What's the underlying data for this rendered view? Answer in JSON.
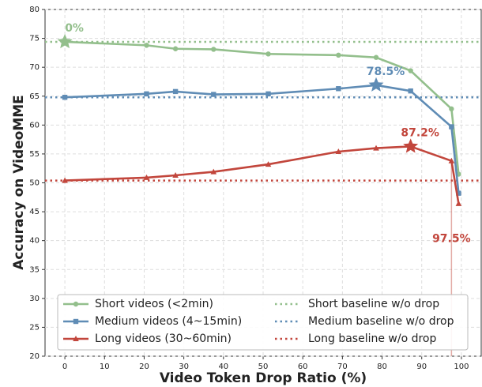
{
  "chart_data": {
    "type": "line",
    "x_label": "Video Token Drop Ratio (%)",
    "y_label": "Accuracy on VideoMME",
    "xlim": [
      -5,
      105
    ],
    "ylim": [
      20,
      80
    ],
    "xticks": [
      0,
      10,
      20,
      30,
      40,
      50,
      60,
      70,
      80,
      90,
      100
    ],
    "yticks": [
      20,
      25,
      30,
      35,
      40,
      45,
      50,
      55,
      60,
      65,
      70,
      75,
      80
    ],
    "grid": true,
    "legend": "lower center",
    "x": [
      0,
      20.6,
      27.9,
      37.5,
      51.3,
      69.0,
      78.5,
      87.2,
      97.5,
      99.3
    ],
    "series": [
      {
        "name": "Short videos (<2min)",
        "color": "#93bf8c",
        "marker": "circle",
        "values": [
          74.4,
          73.8,
          73.2,
          73.1,
          72.3,
          72.1,
          71.7,
          69.4,
          62.8,
          51.5
        ]
      },
      {
        "name": "Medium videos (4~15min)",
        "color": "#5f8cb5",
        "marker": "square",
        "values": [
          64.8,
          65.4,
          65.8,
          65.3,
          65.4,
          66.3,
          66.9,
          65.9,
          59.7,
          48.2
        ]
      },
      {
        "name": "Long videos (30~60min)",
        "color": "#c2463c",
        "marker": "triangle",
        "values": [
          50.4,
          50.9,
          51.3,
          51.9,
          53.2,
          55.4,
          56.0,
          56.3,
          53.8,
          46.4
        ]
      }
    ],
    "baselines": [
      {
        "name": "Short baseline w/o drop",
        "color": "#93bf8c",
        "value": 74.4
      },
      {
        "name": "Medium baseline w/o drop",
        "color": "#5f8cb5",
        "value": 64.8
      },
      {
        "name": "Long baseline w/o drop",
        "color": "#c2463c",
        "value": 50.4
      }
    ],
    "annotations": [
      {
        "text": "0%",
        "x": 0,
        "y": 74.4,
        "color": "#93bf8c",
        "marker": "star"
      },
      {
        "text": "78.5%",
        "x": 78.5,
        "y": 66.9,
        "color": "#5f8cb5",
        "marker": "star"
      },
      {
        "text": "87.2%",
        "x": 87.2,
        "y": 56.3,
        "color": "#c2463c",
        "marker": "star"
      },
      {
        "text": "97.5%",
        "x": 97.5,
        "y": 53.8,
        "color": "#c2463c",
        "marker": "vline"
      }
    ]
  }
}
